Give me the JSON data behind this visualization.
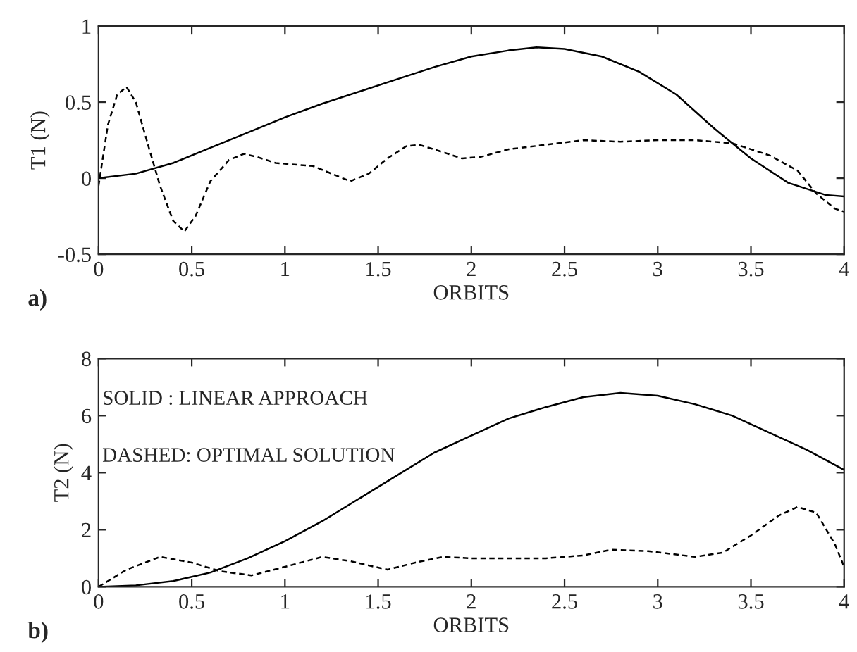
{
  "chart_data": [
    {
      "type": "line",
      "xlabel": "ORBITS",
      "ylabel": "T1 (N)",
      "xlim": [
        0,
        4
      ],
      "ylim": [
        -0.5,
        1
      ],
      "xticks": [
        0,
        0.5,
        1,
        1.5,
        2,
        2.5,
        3,
        3.5,
        4
      ],
      "yticks": [
        -0.5,
        0,
        0.5,
        1
      ],
      "grid": false,
      "annotations": [
        "a)"
      ],
      "series": [
        {
          "color": "#000000",
          "line_style": "solid",
          "x": [
            0,
            0.2,
            0.4,
            0.6,
            0.8,
            1.0,
            1.2,
            1.4,
            1.6,
            1.8,
            2.0,
            2.2,
            2.35,
            2.5,
            2.7,
            2.9,
            3.1,
            3.3,
            3.5,
            3.7,
            3.9,
            4.0
          ],
          "values": [
            0,
            0.03,
            0.1,
            0.2,
            0.3,
            0.4,
            0.49,
            0.57,
            0.65,
            0.73,
            0.8,
            0.84,
            0.86,
            0.85,
            0.8,
            0.7,
            0.55,
            0.33,
            0.13,
            -0.03,
            -0.11,
            -0.12
          ]
        },
        {
          "color": "#000000",
          "line_style": "dashed",
          "x": [
            0,
            0.05,
            0.1,
            0.15,
            0.2,
            0.27,
            0.33,
            0.4,
            0.46,
            0.52,
            0.6,
            0.7,
            0.78,
            0.85,
            0.95,
            1.05,
            1.15,
            1.25,
            1.35,
            1.45,
            1.55,
            1.65,
            1.72,
            1.85,
            1.95,
            2.05,
            2.2,
            2.4,
            2.6,
            2.8,
            3.0,
            3.2,
            3.4,
            3.6,
            3.75,
            3.85,
            3.95,
            4.0
          ],
          "values": [
            -0.05,
            0.35,
            0.55,
            0.6,
            0.5,
            0.2,
            -0.05,
            -0.28,
            -0.35,
            -0.25,
            -0.02,
            0.12,
            0.16,
            0.14,
            0.1,
            0.09,
            0.08,
            0.03,
            -0.02,
            0.03,
            0.13,
            0.21,
            0.22,
            0.17,
            0.13,
            0.14,
            0.19,
            0.22,
            0.25,
            0.24,
            0.25,
            0.25,
            0.23,
            0.15,
            0.05,
            -0.1,
            -0.2,
            -0.22
          ]
        }
      ]
    },
    {
      "type": "line",
      "xlabel": "ORBITS",
      "ylabel": "T2 (N)",
      "xlim": [
        0,
        4
      ],
      "ylim": [
        0,
        8
      ],
      "xticks": [
        0,
        0.5,
        1,
        1.5,
        2,
        2.5,
        3,
        3.5,
        4
      ],
      "yticks": [
        0,
        2,
        4,
        6,
        8
      ],
      "grid": false,
      "annotations": [
        "b)",
        "SOLID : LINEAR APPROACH",
        "DASHED: OPTIMAL SOLUTION"
      ],
      "series": [
        {
          "color": "#000000",
          "line_style": "solid",
          "x": [
            0,
            0.2,
            0.4,
            0.6,
            0.8,
            1.0,
            1.2,
            1.4,
            1.6,
            1.8,
            2.0,
            2.2,
            2.4,
            2.6,
            2.8,
            3.0,
            3.2,
            3.4,
            3.6,
            3.8,
            4.0
          ],
          "values": [
            0,
            0.05,
            0.2,
            0.5,
            1.0,
            1.6,
            2.3,
            3.1,
            3.9,
            4.7,
            5.3,
            5.9,
            6.3,
            6.65,
            6.8,
            6.7,
            6.4,
            6.0,
            5.4,
            4.8,
            4.1
          ]
        },
        {
          "color": "#000000",
          "line_style": "dashed",
          "x": [
            0,
            0.15,
            0.33,
            0.5,
            0.65,
            0.82,
            1.0,
            1.2,
            1.35,
            1.55,
            1.7,
            1.85,
            2.0,
            2.4,
            2.6,
            2.75,
            2.95,
            3.2,
            3.35,
            3.5,
            3.65,
            3.75,
            3.85,
            3.95,
            4.0
          ],
          "values": [
            0,
            0.6,
            1.05,
            0.85,
            0.55,
            0.4,
            0.7,
            1.05,
            0.9,
            0.6,
            0.85,
            1.05,
            1.0,
            1.0,
            1.1,
            1.3,
            1.25,
            1.05,
            1.2,
            1.8,
            2.5,
            2.8,
            2.6,
            1.5,
            0.7
          ]
        }
      ]
    }
  ]
}
